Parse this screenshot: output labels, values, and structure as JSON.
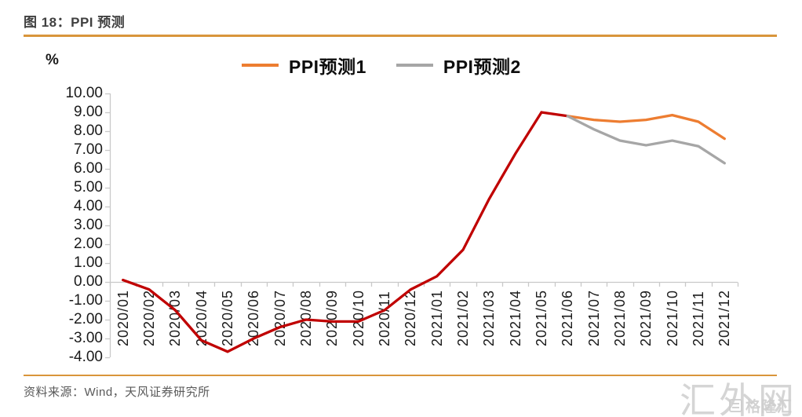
{
  "header": {
    "title": "图 18：PPI 预测"
  },
  "chart_data": {
    "type": "line",
    "title": "图 18：PPI 预测",
    "unit_label": "%",
    "grid": false,
    "legend_position": "top",
    "ylim": [
      -4,
      10
    ],
    "ytick_step": 1,
    "ytick_labels": [
      "10.00",
      "9.00",
      "8.00",
      "7.00",
      "6.00",
      "5.00",
      "4.00",
      "3.00",
      "2.00",
      "1.00",
      "0.00",
      "-1.00",
      "-2.00",
      "-3.00",
      "-4.00"
    ],
    "x_labels": [
      "2020/01",
      "2020/02",
      "2020/03",
      "2020/04",
      "2020/05",
      "2020/06",
      "2020/07",
      "2020/08",
      "2020/09",
      "2020/10",
      "2020/11",
      "2020/12",
      "2021/01",
      "2021/02",
      "2021/03",
      "2021/04",
      "2021/05",
      "2021/06",
      "2021/07",
      "2021/08",
      "2021/09",
      "2021/10",
      "2021/11",
      "2021/12"
    ],
    "legend": [
      {
        "label": "PPI预测1",
        "color": "#ED7D31"
      },
      {
        "label": "PPI预测2",
        "color": "#A6A6A6"
      }
    ],
    "series": [
      {
        "name": "",
        "color": "#C00000",
        "start_index": 0,
        "values": [
          0.1,
          -0.4,
          -1.5,
          -3.1,
          -3.7,
          -3.0,
          -2.4,
          -2.0,
          -2.1,
          -2.1,
          -1.5,
          -0.4,
          0.3,
          1.7,
          4.4,
          6.8,
          9.0,
          8.8
        ]
      },
      {
        "name": "PPI预测1",
        "color": "#ED7D31",
        "start_index": 17,
        "values": [
          8.8,
          8.6,
          8.5,
          8.6,
          8.85,
          8.5,
          7.6
        ]
      },
      {
        "name": "PPI预测2",
        "color": "#A6A6A6",
        "start_index": 17,
        "values": [
          8.8,
          8.1,
          7.5,
          7.25,
          7.5,
          7.2,
          6.3
        ]
      }
    ],
    "axis_color": "#C9C9C9"
  },
  "footer": {
    "source": "资料来源：Wind，天风证券研究所"
  },
  "watermark": {
    "large": "汇外网",
    "small": "格隆汇"
  }
}
